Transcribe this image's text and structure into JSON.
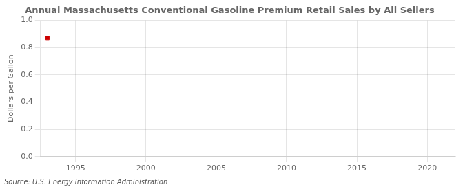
{
  "chart_data": {
    "type": "scatter",
    "title": "Annual Massachusetts Conventional Gasoline Premium Retail Sales by All Sellers",
    "ylabel": "Dollars per Gallon",
    "annotations": [
      "Source: U.S. Energy Information Administration"
    ],
    "x": [
      1993
    ],
    "values": [
      0.87
    ],
    "color": "#cc0000",
    "marker": "square",
    "xlim": [
      1992.5,
      2022
    ],
    "xticks": [
      1995,
      2000,
      2005,
      2010,
      2015,
      2020
    ],
    "ylim": [
      0.0,
      1.0
    ],
    "yticks": [
      {
        "value": 0,
        "label": "0.0"
      },
      0.2,
      0.4,
      0.6,
      0.8,
      {
        "value": 1,
        "label": "1.0"
      }
    ],
    "grid": true
  }
}
